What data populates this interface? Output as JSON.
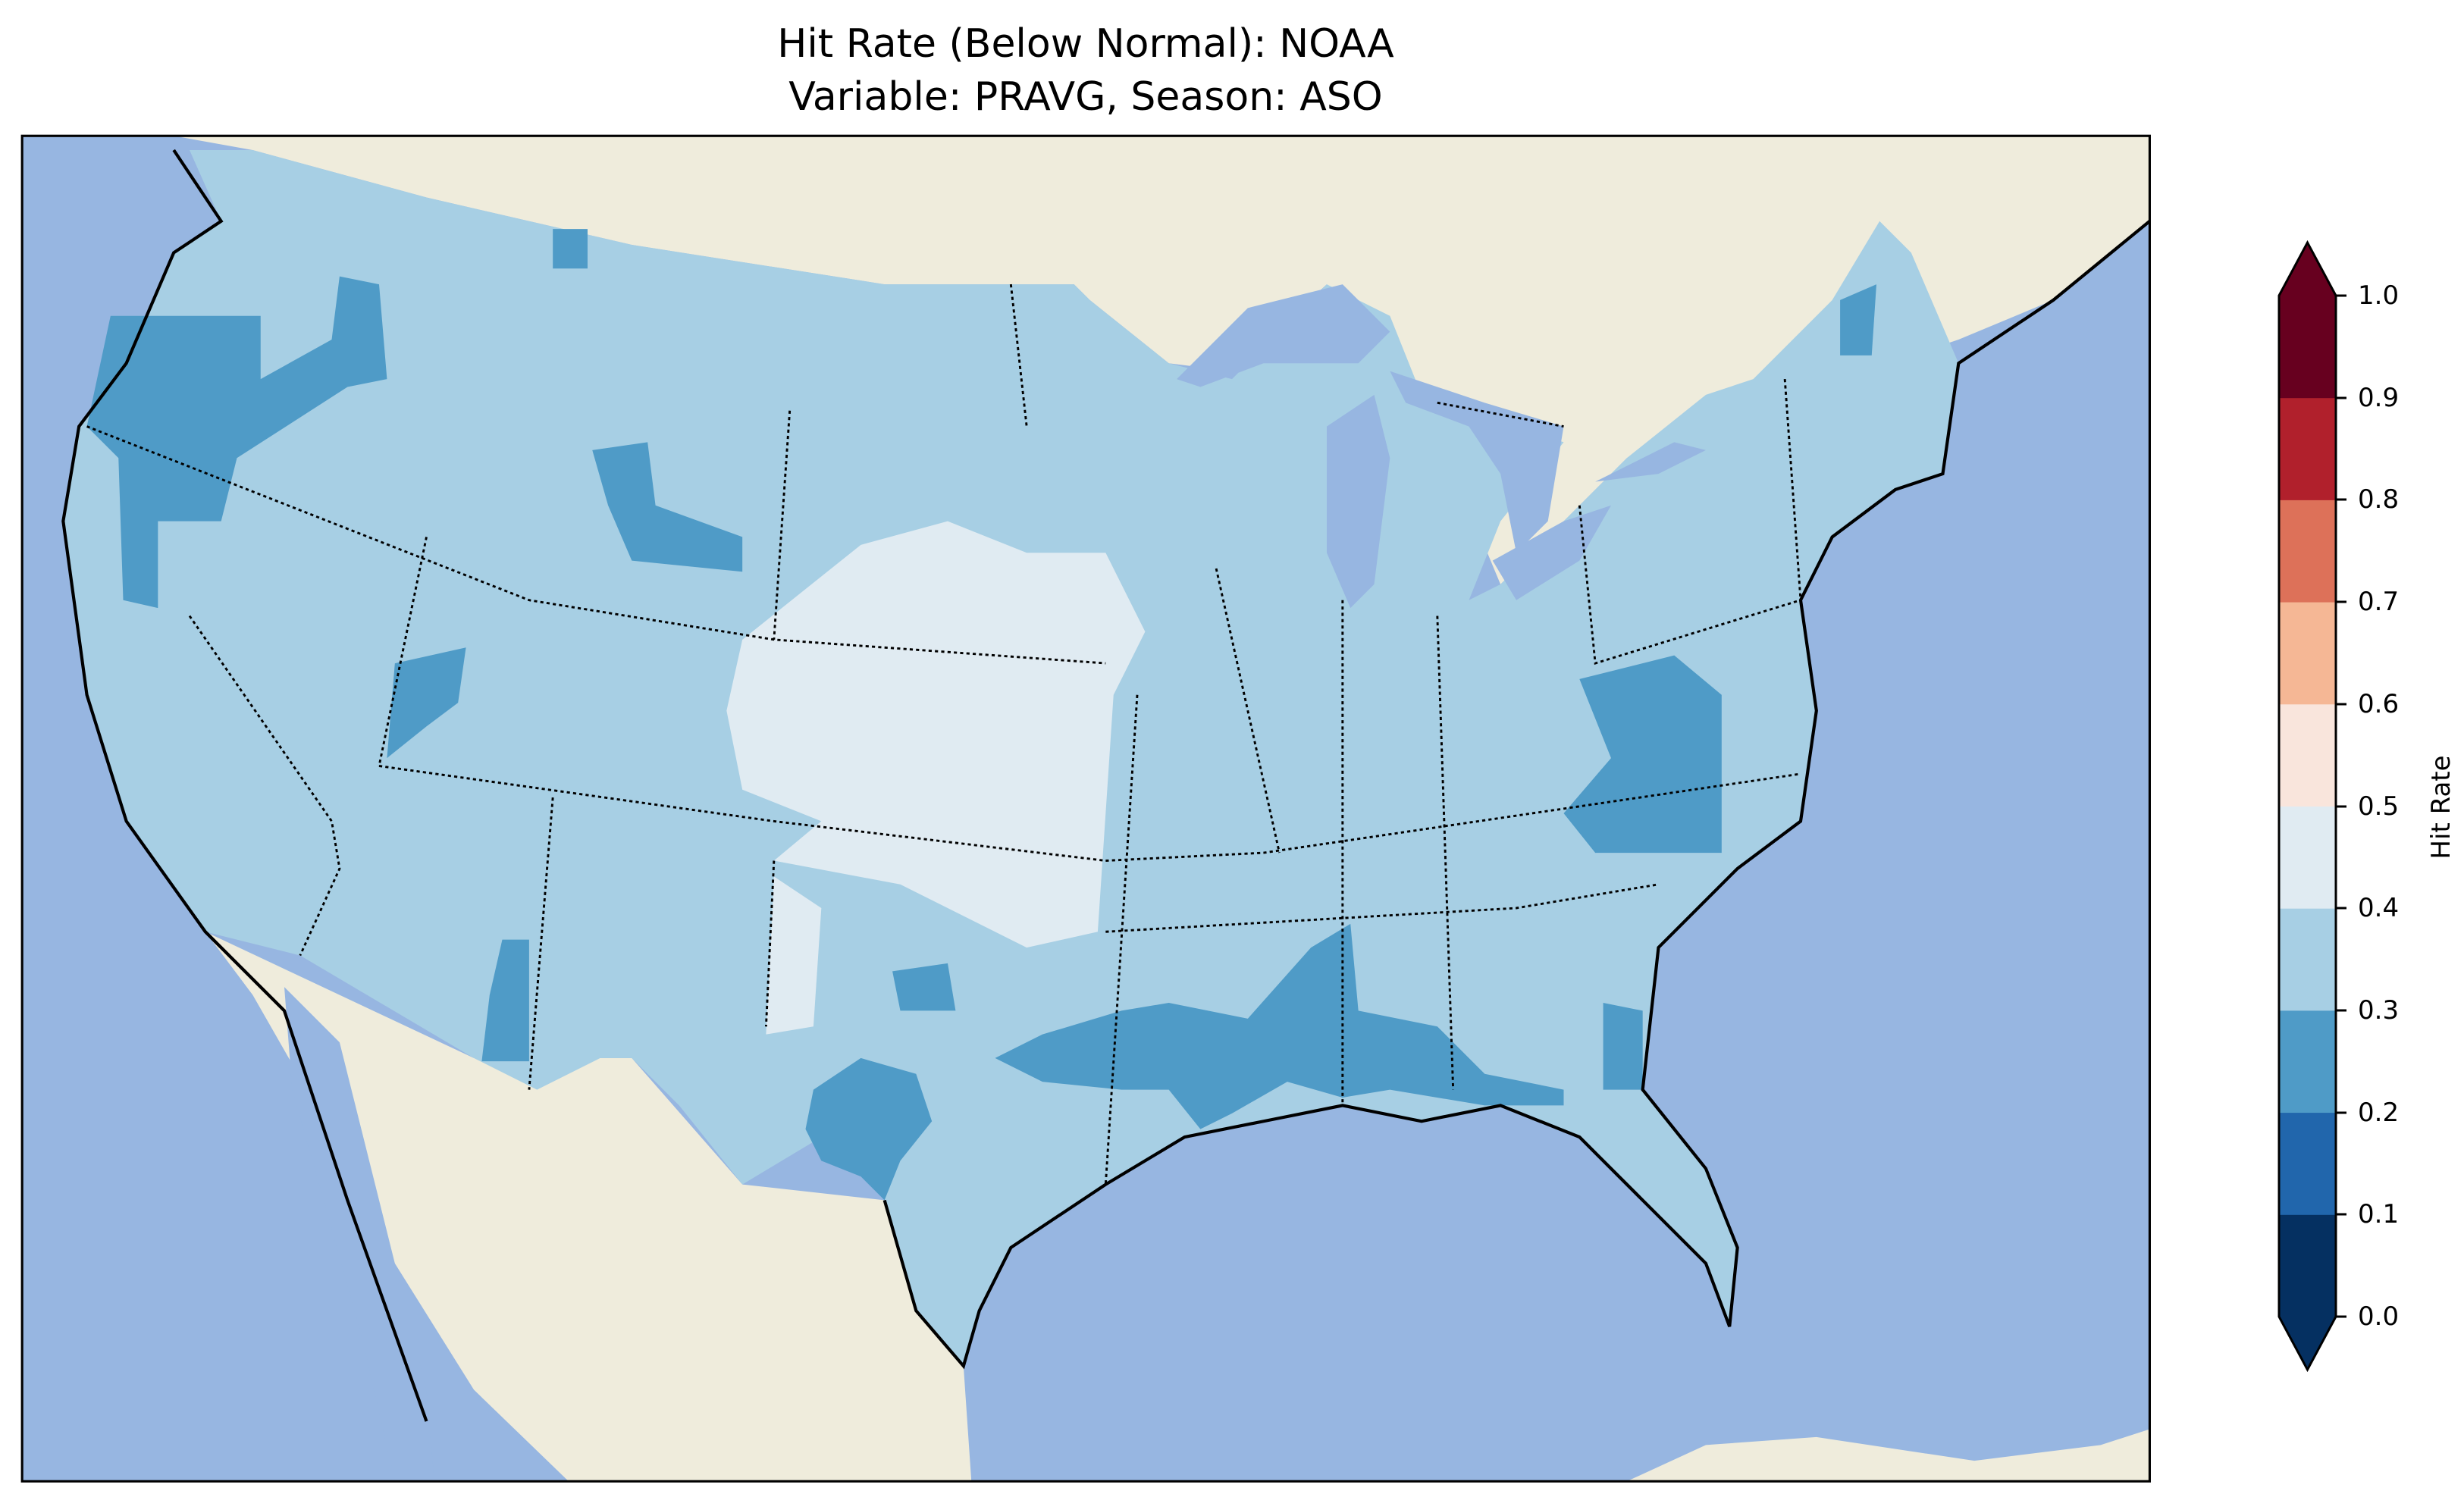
{
  "title": {
    "line1": "Hit Rate (Below Normal): NOAA",
    "line2": "Variable: PRAVG, Season: ASO"
  },
  "colorbar": {
    "label": "Hit Rate",
    "ticks": [
      "0.0",
      "0.1",
      "0.2",
      "0.3",
      "0.4",
      "0.5",
      "0.6",
      "0.7",
      "0.8",
      "0.9",
      "1.0"
    ],
    "levels": [
      0,
      0.1,
      0.2,
      0.3,
      0.4,
      0.5,
      0.6,
      0.7,
      0.8,
      0.9,
      1.0
    ],
    "colors": [
      "#053061",
      "#2166ac",
      "#4f9bc7",
      "#a7cfe4",
      "#e0ebf2",
      "#f9e5dc",
      "#f5b795",
      "#dd7159",
      "#b1202c",
      "#67001f"
    ],
    "extend": "both"
  },
  "map": {
    "ocean_color": "#97b6e1",
    "land_color": "#efecdc",
    "dominant_bin": "0.3-0.4",
    "regions": [
      {
        "area": "Pacific Northwest / Idaho",
        "bin": "0.2-0.3"
      },
      {
        "area": "Wyoming",
        "bin": "0.2-0.3"
      },
      {
        "area": "Central Plains (Nebraska, Kansas, W Oklahoma, E Colorado)",
        "bin": "0.4-0.5"
      },
      {
        "area": "Virginia / North Carolina",
        "bin": "0.2-0.3"
      },
      {
        "area": "Lower Mississippi Valley / Alabama",
        "bin": "0.2-0.3"
      },
      {
        "area": "Central Texas",
        "bin": "0.2-0.3"
      }
    ]
  }
}
